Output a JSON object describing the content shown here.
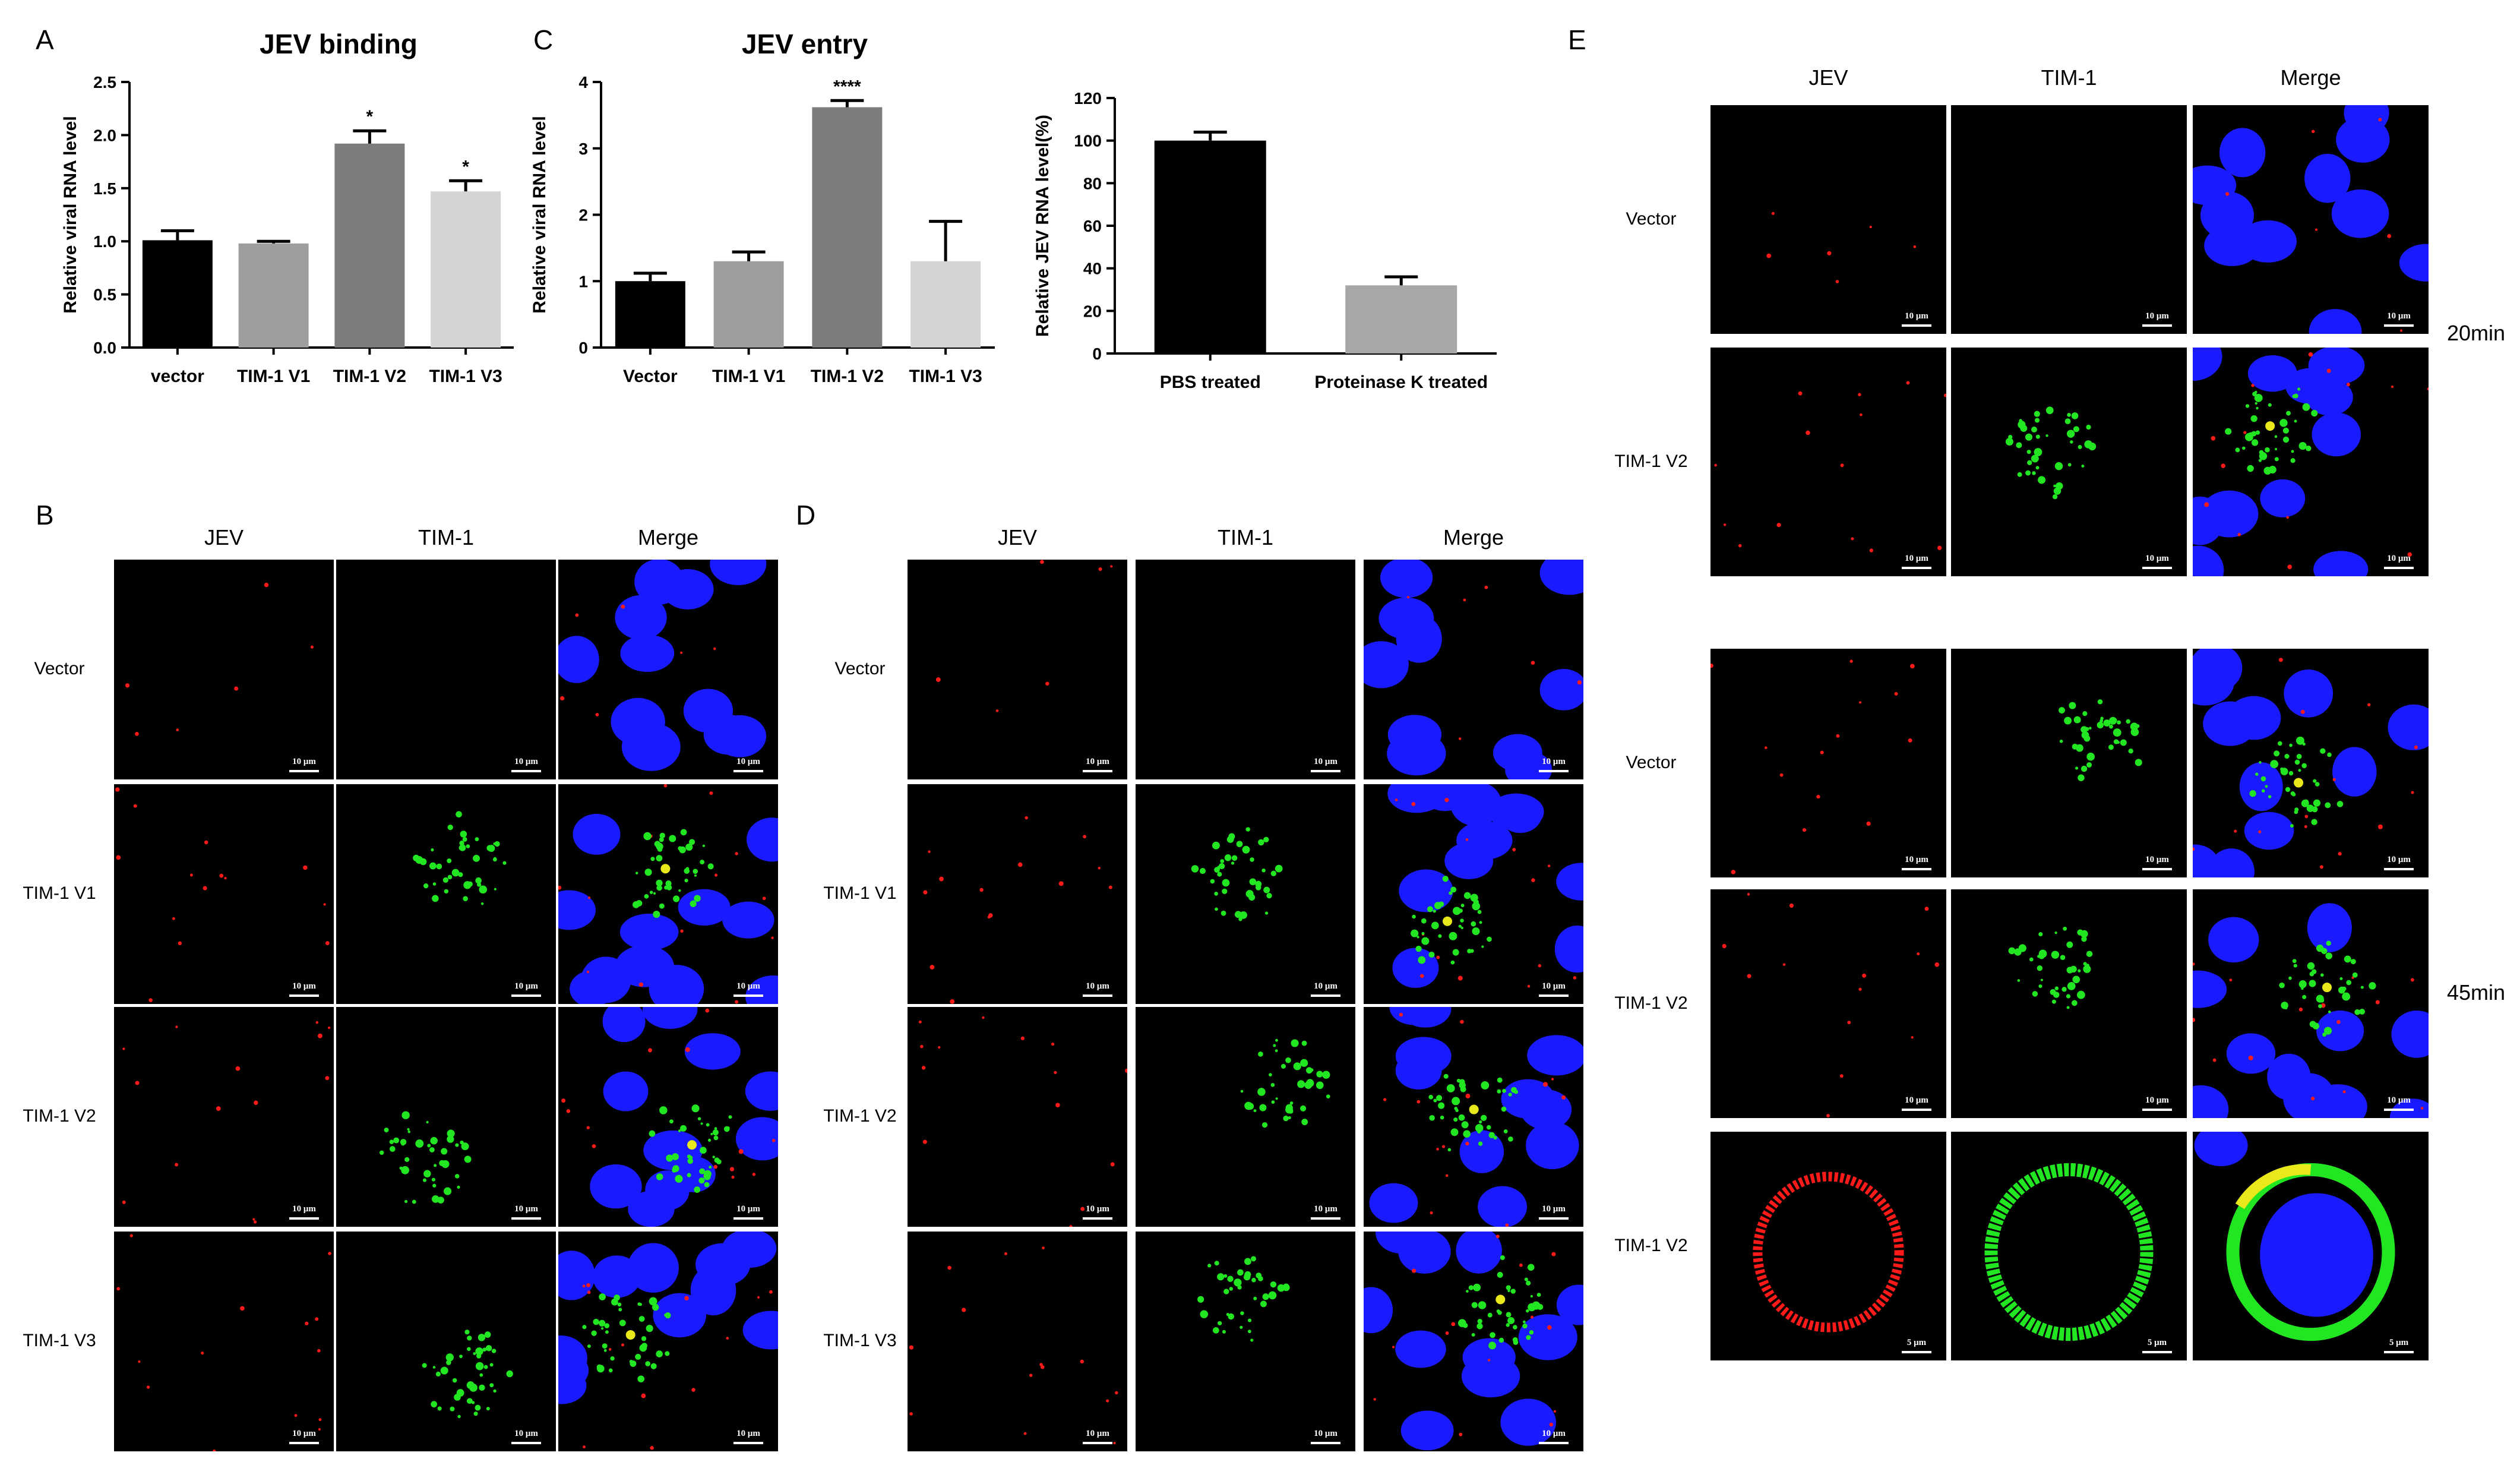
{
  "panel_labels": {
    "A": "A",
    "B": "B",
    "C": "C",
    "D": "D",
    "E": "E"
  },
  "chart_data": [
    {
      "type": "bar",
      "title": "JEV binding",
      "ylabel": "Relative viral RNA level",
      "xlabel": "",
      "categories": [
        "vector",
        "TIM-1 V1",
        "TIM-1 V2",
        "TIM-1 V3"
      ],
      "values": [
        1.01,
        0.98,
        1.92,
        1.47
      ],
      "errors": [
        0.09,
        0.02,
        0.12,
        0.1
      ],
      "significance": [
        "",
        "",
        "*",
        "*"
      ],
      "colors": [
        "#000000",
        "#9e9e9e",
        "#7c7c7c",
        "#d4d4d4"
      ],
      "ylim": [
        0,
        2.5
      ],
      "yticks": [
        "0.0",
        "0.5",
        "1.0",
        "1.5",
        "2.0",
        "2.5"
      ]
    },
    {
      "type": "bar",
      "title": "JEV entry",
      "ylabel": "Relative viral RNA level",
      "xlabel": "",
      "categories": [
        "Vector",
        "TIM-1 V1",
        "TIM-1 V2",
        "TIM-1 V3"
      ],
      "values": [
        1.0,
        1.3,
        3.62,
        1.3
      ],
      "errors": [
        0.12,
        0.14,
        0.1,
        0.6
      ],
      "significance": [
        "",
        "",
        "****",
        ""
      ],
      "colors": [
        "#000000",
        "#9e9e9e",
        "#7c7c7c",
        "#d4d4d4"
      ],
      "ylim": [
        0,
        4
      ],
      "yticks": [
        "0",
        "1",
        "2",
        "3",
        "4"
      ]
    },
    {
      "type": "bar",
      "title": "",
      "ylabel": "Relative JEV RNA level(%)",
      "xlabel": "",
      "categories": [
        "PBS treated",
        "Proteinase K treated"
      ],
      "values": [
        100,
        32
      ],
      "errors": [
        4,
        4
      ],
      "significance": [
        "",
        ""
      ],
      "colors": [
        "#000000",
        "#a7a7a7"
      ],
      "ylim": [
        0,
        120
      ],
      "yticks": [
        "0",
        "20",
        "40",
        "60",
        "80",
        "100",
        "120"
      ]
    }
  ],
  "micrograph_panels": {
    "B": {
      "columns": [
        "JEV",
        "TIM-1",
        "Merge"
      ],
      "rows": [
        "Vector",
        "TIM-1 V1",
        "TIM-1 V2",
        "TIM-1 V3"
      ],
      "scale_bar": "10 μm"
    },
    "D": {
      "columns": [
        "JEV",
        "TIM-1",
        "Merge"
      ],
      "rows": [
        "Vector",
        "TIM-1 V1",
        "TIM-1 V2",
        "TIM-1 V3"
      ],
      "scale_bar": "10 μm"
    },
    "E": {
      "columns": [
        "JEV",
        "TIM-1",
        "Merge"
      ],
      "rows": [
        "Vector",
        "TIM-1 V2",
        "Vector",
        "TIM-1 V2",
        "TIM-1 V2"
      ],
      "scale_bar": "10 μm",
      "scale_bar_zoom": "5 μm",
      "timepoints": [
        "20min",
        "45min"
      ]
    }
  },
  "channel_colors": {
    "jev": "#ff1a1a",
    "tim1": "#22e622",
    "nuclei": "#1a1aff",
    "overlap": "#e8e81a"
  }
}
